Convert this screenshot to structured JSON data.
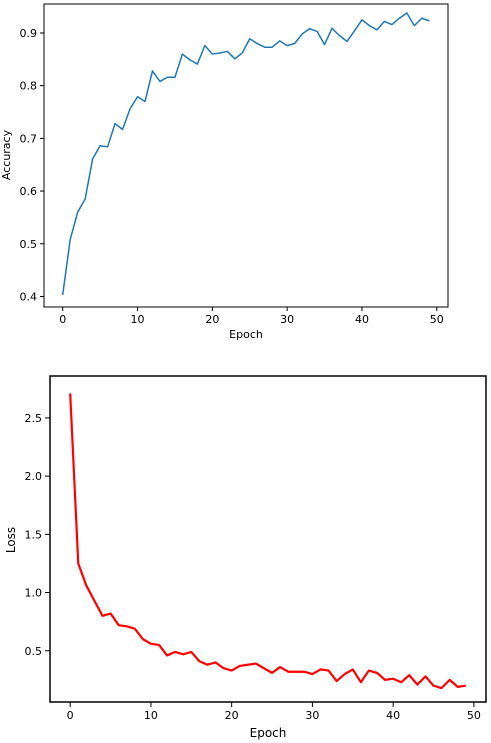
{
  "chart_data": [
    {
      "type": "line",
      "xlabel": "Epoch",
      "ylabel": "Accuracy",
      "xlim": [
        -2.5,
        51.5
      ],
      "ylim": [
        0.38,
        0.955
      ],
      "xticks": [
        0,
        10,
        20,
        30,
        40,
        50
      ],
      "yticks": [
        0.4,
        0.5,
        0.6,
        0.7,
        0.8,
        0.9
      ],
      "xtick_labels": [
        "0",
        "10",
        "20",
        "30",
        "40",
        "50"
      ],
      "ytick_labels": [
        "0.4",
        "0.5",
        "0.6",
        "0.7",
        "0.8",
        "0.9"
      ],
      "grid": false,
      "series": [
        {
          "color": "#1f77b4",
          "x": [
            0,
            1,
            2,
            3,
            4,
            5,
            6,
            7,
            8,
            9,
            10,
            11,
            12,
            13,
            14,
            15,
            16,
            17,
            18,
            19,
            20,
            21,
            22,
            23,
            24,
            25,
            26,
            27,
            28,
            29,
            30,
            31,
            32,
            33,
            34,
            35,
            36,
            37,
            38,
            39,
            40,
            41,
            42,
            43,
            44,
            45,
            46,
            47,
            48,
            49
          ],
          "values": [
            0.403,
            0.508,
            0.56,
            0.585,
            0.661,
            0.686,
            0.684,
            0.728,
            0.717,
            0.756,
            0.779,
            0.77,
            0.828,
            0.808,
            0.816,
            0.816,
            0.86,
            0.849,
            0.841,
            0.876,
            0.86,
            0.862,
            0.865,
            0.851,
            0.862,
            0.889,
            0.88,
            0.873,
            0.873,
            0.885,
            0.876,
            0.88,
            0.898,
            0.908,
            0.903,
            0.878,
            0.909,
            0.895,
            0.884,
            0.904,
            0.925,
            0.914,
            0.906,
            0.922,
            0.916,
            0.928,
            0.938,
            0.914,
            0.928,
            0.923
          ]
        }
      ]
    },
    {
      "type": "line",
      "xlabel": "Epoch",
      "ylabel": "Loss",
      "xlim": [
        -2.5,
        51.5
      ],
      "ylim": [
        0.06,
        2.86
      ],
      "xticks": [
        0,
        10,
        20,
        30,
        40,
        50
      ],
      "yticks": [
        0.5,
        1.0,
        1.5,
        2.0,
        2.5
      ],
      "xtick_labels": [
        "0",
        "10",
        "20",
        "30",
        "40",
        "50"
      ],
      "ytick_labels": [
        "0.5",
        "1.0",
        "1.5",
        "2.0",
        "2.5"
      ],
      "grid": false,
      "series": [
        {
          "color": "#ff0000",
          "x": [
            0,
            1,
            2,
            3,
            4,
            5,
            6,
            7,
            8,
            9,
            10,
            11,
            12,
            13,
            14,
            15,
            16,
            17,
            18,
            19,
            20,
            21,
            22,
            23,
            24,
            25,
            26,
            27,
            28,
            29,
            30,
            31,
            32,
            33,
            34,
            35,
            36,
            37,
            38,
            39,
            40,
            41,
            42,
            43,
            44,
            45,
            46,
            47,
            48,
            49
          ],
          "values": [
            2.71,
            1.25,
            1.06,
            0.93,
            0.8,
            0.82,
            0.72,
            0.71,
            0.69,
            0.6,
            0.56,
            0.55,
            0.46,
            0.49,
            0.47,
            0.49,
            0.41,
            0.38,
            0.4,
            0.35,
            0.33,
            0.37,
            0.38,
            0.39,
            0.35,
            0.31,
            0.36,
            0.32,
            0.32,
            0.32,
            0.3,
            0.34,
            0.33,
            0.24,
            0.3,
            0.34,
            0.23,
            0.33,
            0.31,
            0.25,
            0.26,
            0.23,
            0.29,
            0.21,
            0.28,
            0.2,
            0.18,
            0.25,
            0.19,
            0.2
          ]
        }
      ]
    }
  ]
}
